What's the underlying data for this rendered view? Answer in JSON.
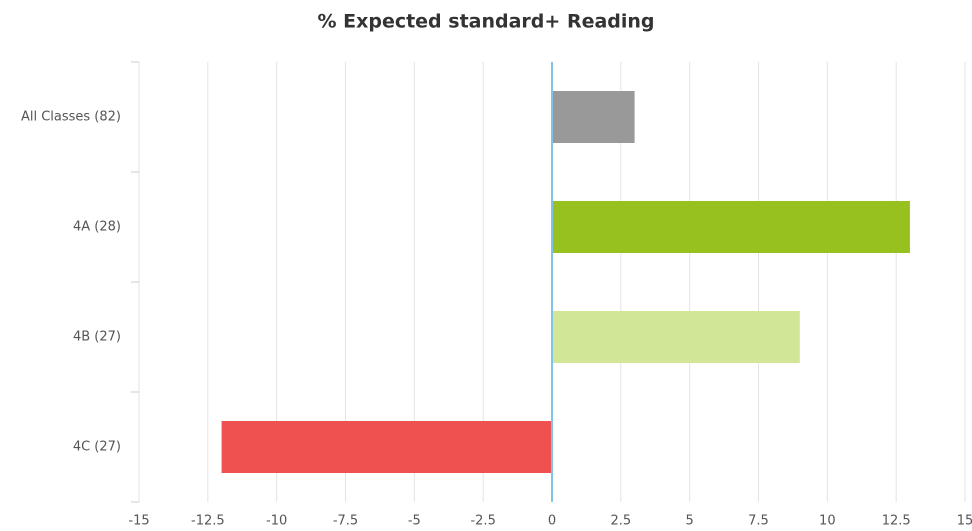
{
  "chart_data": {
    "type": "bar",
    "orientation": "horizontal",
    "title": "% Expected standard+ Reading",
    "categories": [
      "All Classes (82)",
      "4A (28)",
      "4B (27)",
      "4C (27)"
    ],
    "values": [
      3,
      13,
      9,
      -12
    ],
    "colors": [
      "#999999",
      "#96c11f",
      "#d1e697",
      "#ef5151"
    ],
    "xlim": [
      -15,
      15
    ],
    "xticks": [
      -15,
      -12.5,
      -10,
      -7.5,
      -5,
      -2.5,
      0,
      2.5,
      5,
      7.5,
      10,
      12.5,
      15
    ],
    "grid": true
  }
}
